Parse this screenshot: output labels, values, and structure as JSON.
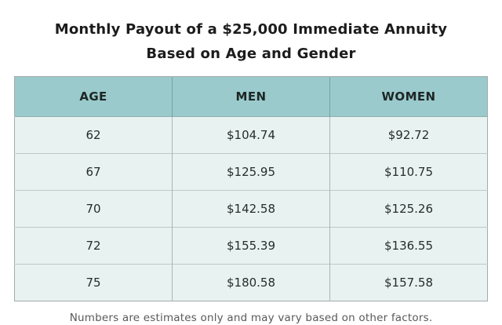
{
  "title": {
    "line1": "Monthly Payout of a $25,000 Immediate Annuity",
    "line2": "Based on Age and Gender"
  },
  "table": {
    "columns": [
      "AGE",
      "MEN",
      "WOMEN"
    ],
    "rows": [
      {
        "age": "62",
        "men": "$104.74",
        "women": "$92.72"
      },
      {
        "age": "67",
        "men": "$125.95",
        "women": "$110.75"
      },
      {
        "age": "70",
        "men": "$142.58",
        "women": "$125.26"
      },
      {
        "age": "72",
        "men": "$155.39",
        "women": "$136.55"
      },
      {
        "age": "75",
        "men": "$180.58",
        "women": "$157.58"
      }
    ]
  },
  "footnote": "Numbers are estimates only and may vary based on other factors.",
  "colors": {
    "header_bg": "#9acacb",
    "row_bg": "#e8f2f1",
    "title_text": "#1c1c1c",
    "footnote_text": "#595959",
    "outer_border": "#a4abab"
  },
  "chart_data": {
    "type": "table",
    "title": "Monthly Payout of a $25,000 Immediate Annuity Based on Age and Gender",
    "columns": [
      "AGE",
      "MEN",
      "WOMEN"
    ],
    "ages": [
      62,
      67,
      70,
      72,
      75
    ],
    "series": [
      {
        "name": "MEN",
        "values": [
          104.74,
          125.95,
          142.58,
          155.39,
          180.58
        ]
      },
      {
        "name": "WOMEN",
        "values": [
          92.72,
          110.75,
          125.26,
          136.55,
          157.58
        ]
      }
    ],
    "note": "Numbers are estimates only and may vary based on other factors."
  }
}
